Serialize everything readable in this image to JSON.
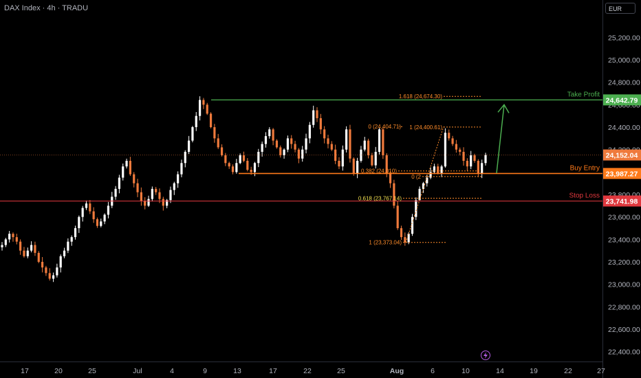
{
  "header": {
    "symbol_label": "DAX Index · 4h · TRADU",
    "currency_label": "EUR"
  },
  "colors": {
    "background": "#000000",
    "up_candle": "#ffffff",
    "down_candle": "#ef7a3c",
    "take_profit": "#4caf50",
    "buy_entry": "#ff7a1a",
    "stop_loss": "#e0383e",
    "fib": "#ff8c2a",
    "arrow": "#4caf50",
    "lightning": "#b05adf"
  },
  "chart_data": {
    "type": "candlestick",
    "y_axis": {
      "min": 22300,
      "max": 25300,
      "ticks": [
        "25,200.00",
        "25,000.00",
        "24,800.00",
        "24,600.00",
        "24,400.00",
        "24,200.00",
        "24,000.00",
        "23,800.00",
        "23,600.00",
        "23,400.00",
        "23,200.00",
        "23,000.00",
        "22,800.00",
        "22,600.00",
        "22,400.00"
      ],
      "tick_values": [
        25200,
        25000,
        24800,
        24600,
        24400,
        24200,
        24000,
        23800,
        23600,
        23400,
        23200,
        23000,
        22800,
        22600,
        22400
      ]
    },
    "x_axis": {
      "labels": [
        "17",
        "20",
        "25",
        "Jul",
        "4",
        "9",
        "13",
        "17",
        "22",
        "25",
        "Aug",
        "6",
        "10",
        "14",
        "19",
        "22",
        "27"
      ]
    },
    "closes": [
      23350,
      23400,
      23450,
      23420,
      23380,
      23300,
      23250,
      23300,
      23350,
      23280,
      23200,
      23150,
      23100,
      23050,
      23080,
      23150,
      23250,
      23300,
      23380,
      23420,
      23500,
      23600,
      23680,
      23720,
      23650,
      23580,
      23520,
      23560,
      23620,
      23700,
      23780,
      23850,
      23950,
      24050,
      24100,
      23980,
      23900,
      23820,
      23740,
      23700,
      23760,
      23850,
      23820,
      23760,
      23700,
      23750,
      23840,
      23900,
      23980,
      24080,
      24180,
      24280,
      24400,
      24500,
      24642,
      24600,
      24520,
      24400,
      24300,
      24220,
      24150,
      24080,
      24050,
      24000,
      24080,
      24150,
      24100,
      24020,
      24000,
      24080,
      24180,
      24250,
      24320,
      24380,
      24280,
      24220,
      24150,
      24200,
      24300,
      24250,
      24200,
      24120,
      24200,
      24300,
      24420,
      24550,
      24480,
      24380,
      24300,
      24250,
      24200,
      24100,
      24050,
      24200,
      24380,
      24120,
      23990,
      24100,
      24200,
      24280,
      24150,
      24060,
      24180,
      24380,
      24150,
      23990,
      23900,
      23700,
      23500,
      23420,
      23373,
      23450,
      23600,
      23750,
      23850,
      23900,
      23950,
      24000,
      24050,
      23990,
      24050,
      24350,
      24300,
      24250,
      24200,
      24180,
      24100,
      24050,
      24150,
      24100,
      23990,
      24080,
      24152
    ],
    "levels": [
      {
        "name": "Take Profit",
        "value": 24642.79,
        "tag": "24,642.79"
      },
      {
        "name": "Buy Entry",
        "value": 23987.27,
        "tag": "23,987.27"
      },
      {
        "name": "Stop Loss",
        "value": 23741.98,
        "tag": "23,741.98"
      }
    ],
    "last_price": {
      "value": 24152.04,
      "tag": "24,152.04"
    },
    "fib_labels": [
      {
        "text": "1.618 (24,674.30)",
        "value": 24674.3
      },
      {
        "text": "0 (24,404.71)",
        "value": 24404.71
      },
      {
        "text": "1 (24,400.61)",
        "value": 24400.61
      },
      {
        "text": "0.382 (24,010)",
        "value": 24010
      },
      {
        "text": "0 (2",
        "value": 23960
      },
      {
        "text": "0.618 (23,767.14)",
        "value": 23767.14
      },
      {
        "text": "1 (23,373.04)",
        "value": 23373.04
      }
    ]
  }
}
